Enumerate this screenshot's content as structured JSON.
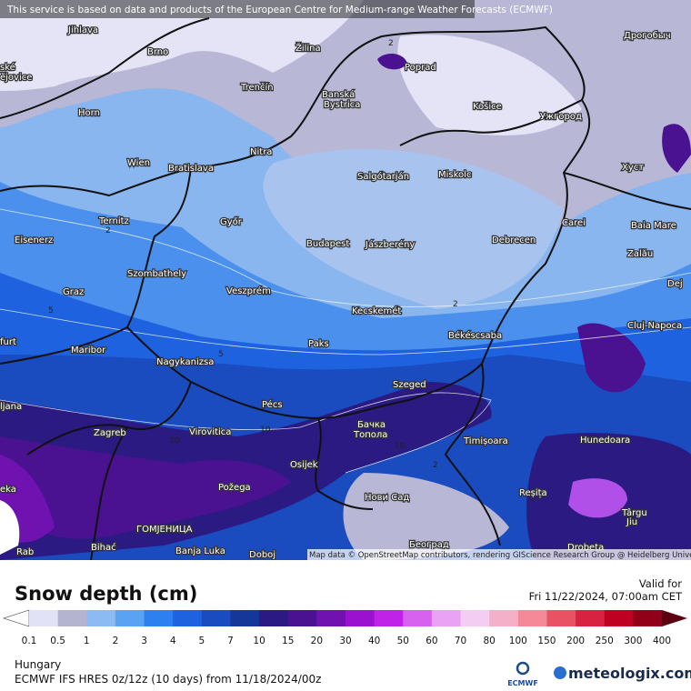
{
  "header": {
    "notice": "This service is based on data and products of the European Centre for Medium-range Weather Forecasts (ECMWF)",
    "attribution": "Map data © OpenStreetMap contributors, rendering GIScience Research Group @ Heidelberg University"
  },
  "map": {
    "cities": [
      "Jihlava",
      "Brno",
      "Žilina",
      "Poprad",
      "Дрогобыч",
      "ské",
      "ějovice",
      "Trenčín",
      "Banská",
      "Bystrica",
      "Košice",
      "Ужгород",
      "Horn",
      "Wien",
      "Bratislava",
      "Nitra",
      "Salgótarján",
      "Miskolc",
      "Хуст",
      "Ternitz",
      "Győr",
      "Budapest",
      "Jászberény",
      "Debrecen",
      "Carei",
      "Baia Mare",
      "Eisenerz",
      "Szombathely",
      "Zalău",
      "Graz",
      "Veszprém",
      "Dej",
      "Kecskemét",
      "Cluj-Napoca",
      "furt",
      "Maribor",
      "Paks",
      "Békéscsaba",
      "Nagykanizsa",
      "Szeged",
      "ljana",
      "Pécs",
      "Бачка",
      "Топола",
      "Zagreb",
      "Virovitica",
      "Timișoara",
      "Hunedoara",
      "Osijek",
      "Požega",
      "eka",
      "Нови Сад",
      "Reșița",
      "Târgu",
      "Jiu",
      "ГОМЈЕНИЦА",
      "Bihać",
      "Banja Luka",
      "Doboj",
      "Београд",
      "Drobeta",
      "Rab"
    ],
    "contour_labels": [
      "2",
      "2",
      "5",
      "5",
      "2",
      "10",
      "10",
      "2",
      "10"
    ]
  },
  "legend": {
    "title": "Snow depth (cm)",
    "valid_label": "Valid for",
    "valid_time": "Fri 11/22/2024, 07:00am CET",
    "ticks": [
      0.1,
      0.5,
      1,
      2,
      3,
      4,
      5,
      7,
      10,
      15,
      20,
      30,
      40,
      50,
      60,
      70,
      80,
      100,
      150,
      200,
      250,
      300,
      400
    ],
    "colors": [
      "#ffffff",
      "#e2e2f6",
      "#b4b4d0",
      "#8cbaf2",
      "#5aa2f2",
      "#2e80f0",
      "#1e62e0",
      "#1a4cc0",
      "#15379a",
      "#2a1a82",
      "#4a1290",
      "#7012b0",
      "#9a12d0",
      "#c022e8",
      "#d862f0",
      "#eaa2f4",
      "#f4cef2",
      "#f4b0c8",
      "#f48a98",
      "#e85262",
      "#d82242",
      "#c00022",
      "#900018",
      "#5a0010"
    ]
  },
  "footer": {
    "region": "Hungary",
    "model": "ECMWF IFS HRES 0z/12z (10 days) from 11/18/2024/00z",
    "ecmwf": "ECMWF",
    "brand": "meteologix.com"
  }
}
